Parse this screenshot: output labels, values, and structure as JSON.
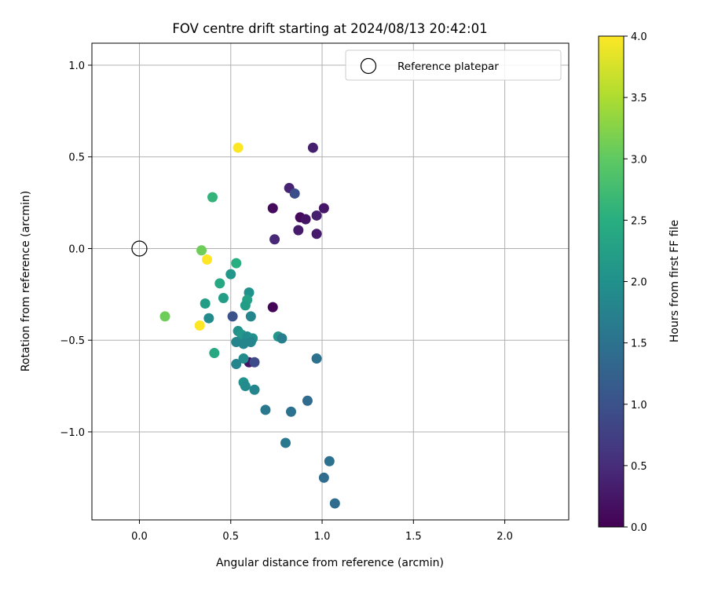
{
  "chart_data": {
    "type": "scatter",
    "title": "FOV centre drift starting at 2024/08/13 20:42:01",
    "xlabel": "Angular distance from reference (arcmin)",
    "ylabel": "Rotation from reference (arcmin)",
    "xlim": [
      -0.26,
      2.35
    ],
    "ylim": [
      -1.48,
      1.12
    ],
    "x_ticks": [
      0.0,
      0.5,
      1.0,
      1.5,
      2.0
    ],
    "x_tick_labels": [
      "0.0",
      "0.5",
      "1.0",
      "1.5",
      "2.0"
    ],
    "y_ticks": [
      1.0,
      0.5,
      0.0,
      -0.5,
      -1.0
    ],
    "y_tick_labels": [
      "1.0",
      "0.5",
      "0.0",
      "−0.5",
      "−1.0"
    ],
    "grid": true,
    "legend": {
      "position": "top-right",
      "entries": [
        "Reference platepar"
      ]
    },
    "reference_point": {
      "x": 0.0,
      "y": 0.0,
      "marker": "open-circle"
    },
    "colorbar": {
      "label": "Hours from first FF file",
      "range": [
        0.0,
        4.0
      ],
      "ticks": [
        0.0,
        0.5,
        1.0,
        1.5,
        2.0,
        2.5,
        3.0,
        3.5,
        4.0
      ],
      "tick_labels": [
        "0.0",
        "0.5",
        "1.0",
        "1.5",
        "2.0",
        "2.5",
        "3.0",
        "3.5",
        "4.0"
      ],
      "colormap": "viridis"
    },
    "points": [
      {
        "x": 0.95,
        "y": 0.55,
        "t": 0.35
      },
      {
        "x": 0.82,
        "y": 0.33,
        "t": 0.4
      },
      {
        "x": 0.85,
        "y": 0.3,
        "t": 0.95
      },
      {
        "x": 0.73,
        "y": 0.22,
        "t": 0.1
      },
      {
        "x": 1.01,
        "y": 0.22,
        "t": 0.25
      },
      {
        "x": 0.97,
        "y": 0.18,
        "t": 0.35
      },
      {
        "x": 0.88,
        "y": 0.17,
        "t": 0.1
      },
      {
        "x": 0.91,
        "y": 0.16,
        "t": 0.2
      },
      {
        "x": 0.87,
        "y": 0.1,
        "t": 0.3
      },
      {
        "x": 0.97,
        "y": 0.08,
        "t": 0.3
      },
      {
        "x": 0.74,
        "y": 0.05,
        "t": 0.45
      },
      {
        "x": 0.73,
        "y": -0.32,
        "t": 0.05
      },
      {
        "x": 0.51,
        "y": -0.37,
        "t": 1.0
      },
      {
        "x": 0.6,
        "y": -0.62,
        "t": 0.2
      },
      {
        "x": 0.63,
        "y": -0.62,
        "t": 0.9
      },
      {
        "x": 0.54,
        "y": 0.55,
        "t": 4.0
      },
      {
        "x": 0.4,
        "y": 0.28,
        "t": 2.6
      },
      {
        "x": 0.34,
        "y": -0.01,
        "t": 3.1
      },
      {
        "x": 0.37,
        "y": -0.06,
        "t": 4.0
      },
      {
        "x": 0.53,
        "y": -0.08,
        "t": 2.5
      },
      {
        "x": 0.5,
        "y": -0.14,
        "t": 2.1
      },
      {
        "x": 0.44,
        "y": -0.19,
        "t": 2.4
      },
      {
        "x": 0.6,
        "y": -0.24,
        "t": 2.0
      },
      {
        "x": 0.46,
        "y": -0.27,
        "t": 2.2
      },
      {
        "x": 0.59,
        "y": -0.28,
        "t": 2.3
      },
      {
        "x": 0.36,
        "y": -0.3,
        "t": 2.2
      },
      {
        "x": 0.58,
        "y": -0.31,
        "t": 2.2
      },
      {
        "x": 0.14,
        "y": -0.37,
        "t": 3.1
      },
      {
        "x": 0.38,
        "y": -0.38,
        "t": 1.9
      },
      {
        "x": 0.61,
        "y": -0.37,
        "t": 1.8
      },
      {
        "x": 0.33,
        "y": -0.42,
        "t": 4.0
      },
      {
        "x": 0.54,
        "y": -0.45,
        "t": 2.0
      },
      {
        "x": 0.56,
        "y": -0.47,
        "t": 2.1
      },
      {
        "x": 0.59,
        "y": -0.48,
        "t": 1.9
      },
      {
        "x": 0.62,
        "y": -0.49,
        "t": 2.0
      },
      {
        "x": 0.76,
        "y": -0.48,
        "t": 2.1
      },
      {
        "x": 0.78,
        "y": -0.49,
        "t": 1.7
      },
      {
        "x": 0.53,
        "y": -0.51,
        "t": 1.8
      },
      {
        "x": 0.57,
        "y": -0.52,
        "t": 1.8
      },
      {
        "x": 0.61,
        "y": -0.51,
        "t": 1.8
      },
      {
        "x": 0.41,
        "y": -0.57,
        "t": 2.4
      },
      {
        "x": 0.97,
        "y": -0.6,
        "t": 1.5
      },
      {
        "x": 0.57,
        "y": -0.6,
        "t": 1.9
      },
      {
        "x": 0.53,
        "y": -0.63,
        "t": 1.8
      },
      {
        "x": 0.57,
        "y": -0.73,
        "t": 2.0
      },
      {
        "x": 0.58,
        "y": -0.75,
        "t": 1.9
      },
      {
        "x": 0.63,
        "y": -0.77,
        "t": 1.8
      },
      {
        "x": 0.92,
        "y": -0.83,
        "t": 1.4
      },
      {
        "x": 0.69,
        "y": -0.88,
        "t": 1.6
      },
      {
        "x": 0.83,
        "y": -0.89,
        "t": 1.5
      },
      {
        "x": 0.8,
        "y": -1.06,
        "t": 1.6
      },
      {
        "x": 1.04,
        "y": -1.16,
        "t": 1.5
      },
      {
        "x": 1.01,
        "y": -1.25,
        "t": 1.4
      },
      {
        "x": 1.07,
        "y": -1.39,
        "t": 1.4
      }
    ]
  }
}
